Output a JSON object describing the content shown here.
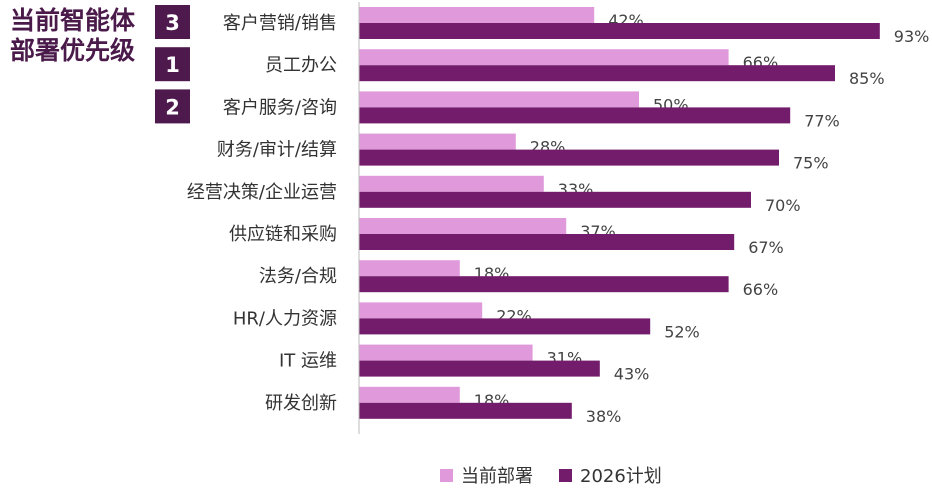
{
  "title_lines": [
    "当前智能体",
    "部署优先级"
  ],
  "colors": {
    "current": "#e09adb",
    "plan": "#731c6b",
    "badge": "#4e1a4e",
    "axis": "#bbbbbb"
  },
  "chart_data": {
    "type": "bar",
    "orientation": "horizontal",
    "categories": [
      "客户营销/销售",
      "员工办公",
      "客户服务/咨询",
      "财务/审计/结算",
      "经营决策/企业运营",
      "供应链和采购",
      "法务/合规",
      "HR/人力资源",
      "IT 运维",
      "研发创新"
    ],
    "series": [
      {
        "name": "当前部署",
        "values": [
          42,
          66,
          50,
          28,
          33,
          37,
          18,
          22,
          31,
          18
        ],
        "labels": [
          "42%",
          "66%",
          "50%",
          "28%",
          "33%",
          "37%",
          "18%",
          "22%",
          "31%",
          "18%"
        ]
      },
      {
        "name": "2026计划",
        "values": [
          93,
          85,
          77,
          75,
          70,
          67,
          66,
          52,
          43,
          38
        ],
        "labels": [
          "93%",
          "85%",
          "77%",
          "75%",
          "70%",
          "67%",
          "66%",
          "52%",
          "43%",
          "38%"
        ]
      }
    ],
    "xlim": [
      0,
      100
    ],
    "grid": false,
    "legend_position": "bottom",
    "rank_badges": [
      {
        "category_index": 0,
        "rank": "3"
      },
      {
        "category_index": 1,
        "rank": "1"
      },
      {
        "category_index": 2,
        "rank": "2"
      }
    ]
  }
}
